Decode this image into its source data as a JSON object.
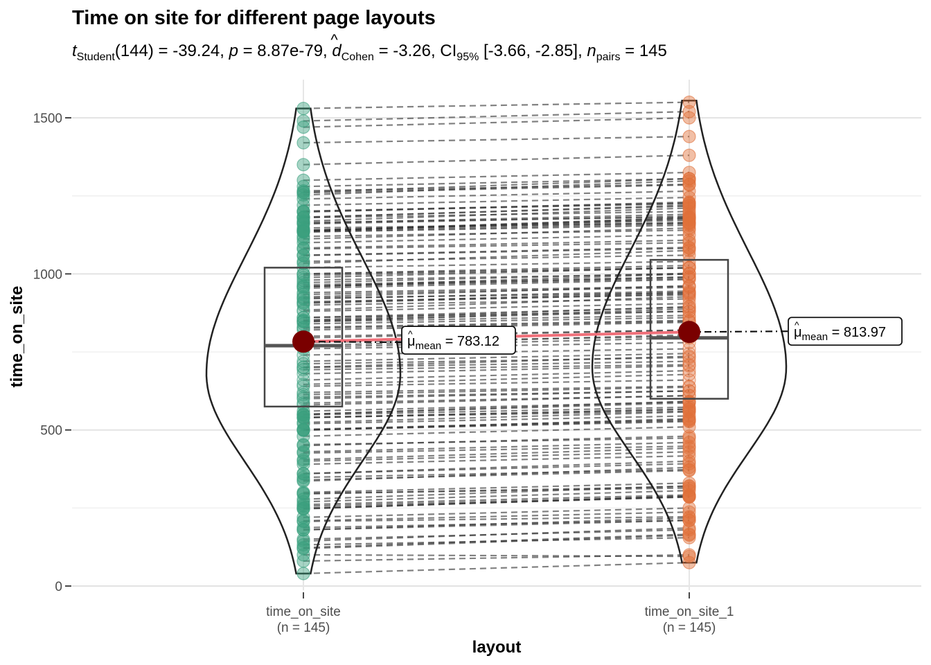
{
  "title": "Time on site for different page layouts",
  "subtitle": {
    "t_label": "t",
    "t_sub": "Student",
    "t_value": "(144) = -39.24, ",
    "p_label": "p",
    "p_value": " = 8.87e-79, ",
    "d_label": "d",
    "d_sub": "Cohen",
    "d_value": " = -3.26, CI",
    "ci_sub": "95%",
    "ci_value": " [-3.66, -2.85], ",
    "n_label": "n",
    "n_sub": "pairs",
    "n_value": " = 145"
  },
  "chart_data": {
    "type": "paired violin-box-scatter",
    "title": "Time on site for different page layouts",
    "xlabel": "layout",
    "ylabel": "time_on_site",
    "ylim": [
      0,
      1580
    ],
    "yticks": [
      0,
      500,
      1000,
      1500
    ],
    "grid": true,
    "groups": [
      {
        "name": "time_on_site",
        "tick_label": "time_on_site",
        "n_label": "(n = 145)",
        "color": "#3BA07E",
        "min": 40,
        "q1": 575,
        "median": 770,
        "q3": 1020,
        "max": 1530,
        "mean": 783.12,
        "mean_label": "= 783.12",
        "violin_max_density_at": 680
      },
      {
        "name": "time_on_site_1",
        "tick_label": "time_on_site_1",
        "n_label": "(n = 145)",
        "color": "#E0703A",
        "min": 75,
        "q1": 600,
        "median": 795,
        "q3": 1045,
        "max": 1555,
        "mean": 813.97,
        "mean_label": "= 813.97",
        "violin_max_density_at": 700
      }
    ],
    "mean_symbol": "μ",
    "mean_sub": "mean",
    "pairs_sample": [
      [
        40,
        75
      ],
      [
        80,
        100
      ],
      [
        100,
        95
      ],
      [
        150,
        180
      ],
      [
        180,
        210
      ],
      [
        220,
        250
      ],
      [
        250,
        285
      ],
      [
        300,
        330
      ],
      [
        340,
        370
      ],
      [
        360,
        400
      ],
      [
        400,
        430
      ],
      [
        430,
        460
      ],
      [
        450,
        480
      ],
      [
        480,
        510
      ],
      [
        500,
        530
      ],
      [
        520,
        545
      ],
      [
        540,
        560
      ],
      [
        560,
        590
      ],
      [
        580,
        610
      ],
      [
        600,
        625
      ],
      [
        620,
        640
      ],
      [
        640,
        660
      ],
      [
        660,
        690
      ],
      [
        680,
        705
      ],
      [
        700,
        720
      ],
      [
        720,
        745
      ],
      [
        740,
        760
      ],
      [
        760,
        780
      ],
      [
        780,
        800
      ],
      [
        800,
        820
      ],
      [
        820,
        845
      ],
      [
        840,
        860
      ],
      [
        860,
        880
      ],
      [
        880,
        905
      ],
      [
        900,
        920
      ],
      [
        920,
        945
      ],
      [
        940,
        960
      ],
      [
        960,
        985
      ],
      [
        980,
        1000
      ],
      [
        1000,
        1020
      ],
      [
        1020,
        1040
      ],
      [
        1040,
        1060
      ],
      [
        1060,
        1085
      ],
      [
        1080,
        1100
      ],
      [
        1100,
        1125
      ],
      [
        1120,
        1140
      ],
      [
        1140,
        1165
      ],
      [
        1160,
        1185
      ],
      [
        1180,
        1200
      ],
      [
        1200,
        1225
      ],
      [
        1220,
        1245
      ],
      [
        1240,
        1265
      ],
      [
        1260,
        1285
      ],
      [
        1280,
        1305
      ],
      [
        1300,
        1325
      ],
      [
        1350,
        1380
      ],
      [
        1420,
        1440
      ],
      [
        1470,
        1500
      ],
      [
        1490,
        1520
      ],
      [
        1530,
        1550
      ]
    ]
  }
}
